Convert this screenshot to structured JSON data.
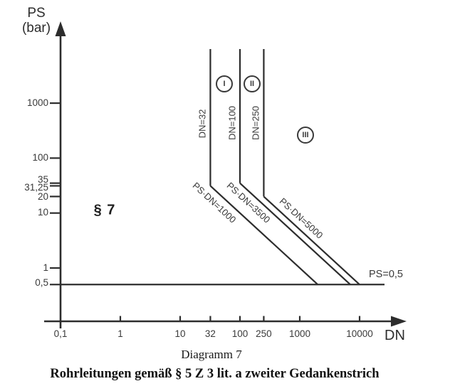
{
  "figure": {
    "bg_color": "#ffffff",
    "line_color": "#2d2d2d",
    "text_color": "#3a3a3a"
  },
  "axes": {
    "y_label_line1": "PS",
    "y_label_line2": "(bar)",
    "x_label": "DN",
    "x_scale": "log",
    "y_scale": "log",
    "x_ticks": [
      {
        "value": 0.1,
        "label": "0,1",
        "dash": false
      },
      {
        "value": 1,
        "label": "1",
        "dash": true
      },
      {
        "value": 10,
        "label": "10",
        "dash": true
      },
      {
        "value": 32,
        "label": "32",
        "dash": true
      },
      {
        "value": 100,
        "label": "100",
        "dash": true
      },
      {
        "value": 250,
        "label": "250",
        "dash": true
      },
      {
        "value": 1000,
        "label": "1000",
        "dash": true
      },
      {
        "value": 10000,
        "label": "10000",
        "dash": true
      }
    ],
    "y_ticks": [
      {
        "value": 1000,
        "label": "1000"
      },
      {
        "value": 100,
        "label": "100"
      },
      {
        "value": 35,
        "label": "35"
      },
      {
        "value": 31.25,
        "label": "31,25"
      },
      {
        "value": 20,
        "label": "20"
      },
      {
        "value": 10,
        "label": "10"
      },
      {
        "value": 1,
        "label": "1"
      },
      {
        "value": 0.5,
        "label": "0,5"
      }
    ]
  },
  "chart_data": {
    "type": "line",
    "description": "Log-log classification diagram of pressure PS (bar) versus nominal diameter DN for piping",
    "x_axis": {
      "label": "DN",
      "scale": "log",
      "range": [
        0.1,
        30000
      ]
    },
    "y_axis": {
      "label": "PS (bar)",
      "scale": "log",
      "range": [
        0.3,
        10000
      ]
    },
    "boundaries": [
      {
        "id": "dn-32",
        "label": "DN=32",
        "type": "vertical",
        "dn": 32,
        "ps_from": 31.25
      },
      {
        "id": "dn-100",
        "label": "DN=100",
        "type": "vertical",
        "dn": 100,
        "ps_from": 35
      },
      {
        "id": "dn-250",
        "label": "DN=250",
        "type": "vertical",
        "dn": 250,
        "ps_from": 20
      },
      {
        "id": "ps-dn-1000",
        "label": "PS·DN=1000",
        "type": "diagonal",
        "from": {
          "dn": 32,
          "ps": 31.25
        },
        "to": {
          "dn": 2000,
          "ps": 0.5
        }
      },
      {
        "id": "ps-dn-3500",
        "label": "PS·DN=3500",
        "type": "diagonal",
        "from": {
          "dn": 100,
          "ps": 35
        },
        "to": {
          "dn": 7000,
          "ps": 0.5
        }
      },
      {
        "id": "ps-dn-5000",
        "label": "PS·DN=5000",
        "type": "diagonal",
        "from": {
          "dn": 250,
          "ps": 20
        },
        "to": {
          "dn": 10000,
          "ps": 0.5
        }
      },
      {
        "id": "ps-0-5",
        "label": "PS=0,5",
        "type": "horizontal",
        "ps": 0.5
      }
    ],
    "zones": [
      {
        "id": "par-7",
        "label": "§ 7",
        "circled": false
      },
      {
        "id": "zone-1",
        "label": "I",
        "circled": true
      },
      {
        "id": "zone-2",
        "label": "II",
        "circled": true
      },
      {
        "id": "zone-3",
        "label": "III",
        "circled": true
      }
    ]
  },
  "captions": {
    "figure_number": "Diagramm 7",
    "title": "Rohrleitungen gemäß § 5 Z 3 lit. a zweiter Gedankenstrich"
  }
}
